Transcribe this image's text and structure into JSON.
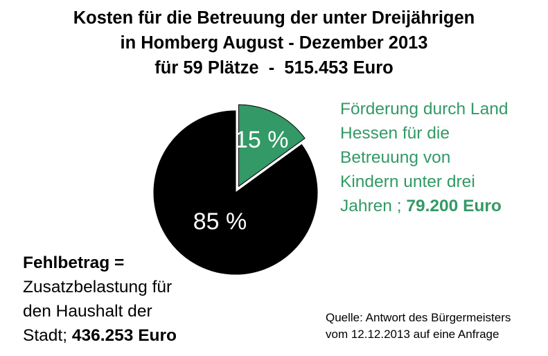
{
  "title_lines": [
    "Kosten für die Betreuung der unter Dreijährigen",
    "in Homberg August - Dezember 2013",
    "für 59 Plätze  -  515.453 Euro"
  ],
  "chart_data": {
    "type": "pie",
    "title": "Kosten für die Betreuung der unter Dreijährigen in Homberg August - Dezember 2013 für 59 Plätze - 515.453 Euro",
    "slices": [
      {
        "label": "15 %",
        "value": 15,
        "color": "#339966",
        "exploded": true
      },
      {
        "label": "85 %",
        "value": 85,
        "color": "#000000",
        "exploded": false
      }
    ]
  },
  "notes": {
    "green": {
      "lines": [
        "Förderung durch Land",
        "Hessen für die",
        "Betreuung von",
        "Kindern unter drei",
        "Jahren ; "
      ],
      "amount": "79.200 Euro",
      "color": "#339966"
    },
    "black": {
      "head": "Fehlbetrag =",
      "lines": [
        "Zusatzbelastung für",
        "den Haushalt der",
        "Stadt; "
      ],
      "amount": "436.253 Euro"
    }
  },
  "source_lines": [
    "Quelle: Antwort des Bürgermeisters",
    "vom 12.12.2013 auf eine Anfrage"
  ]
}
